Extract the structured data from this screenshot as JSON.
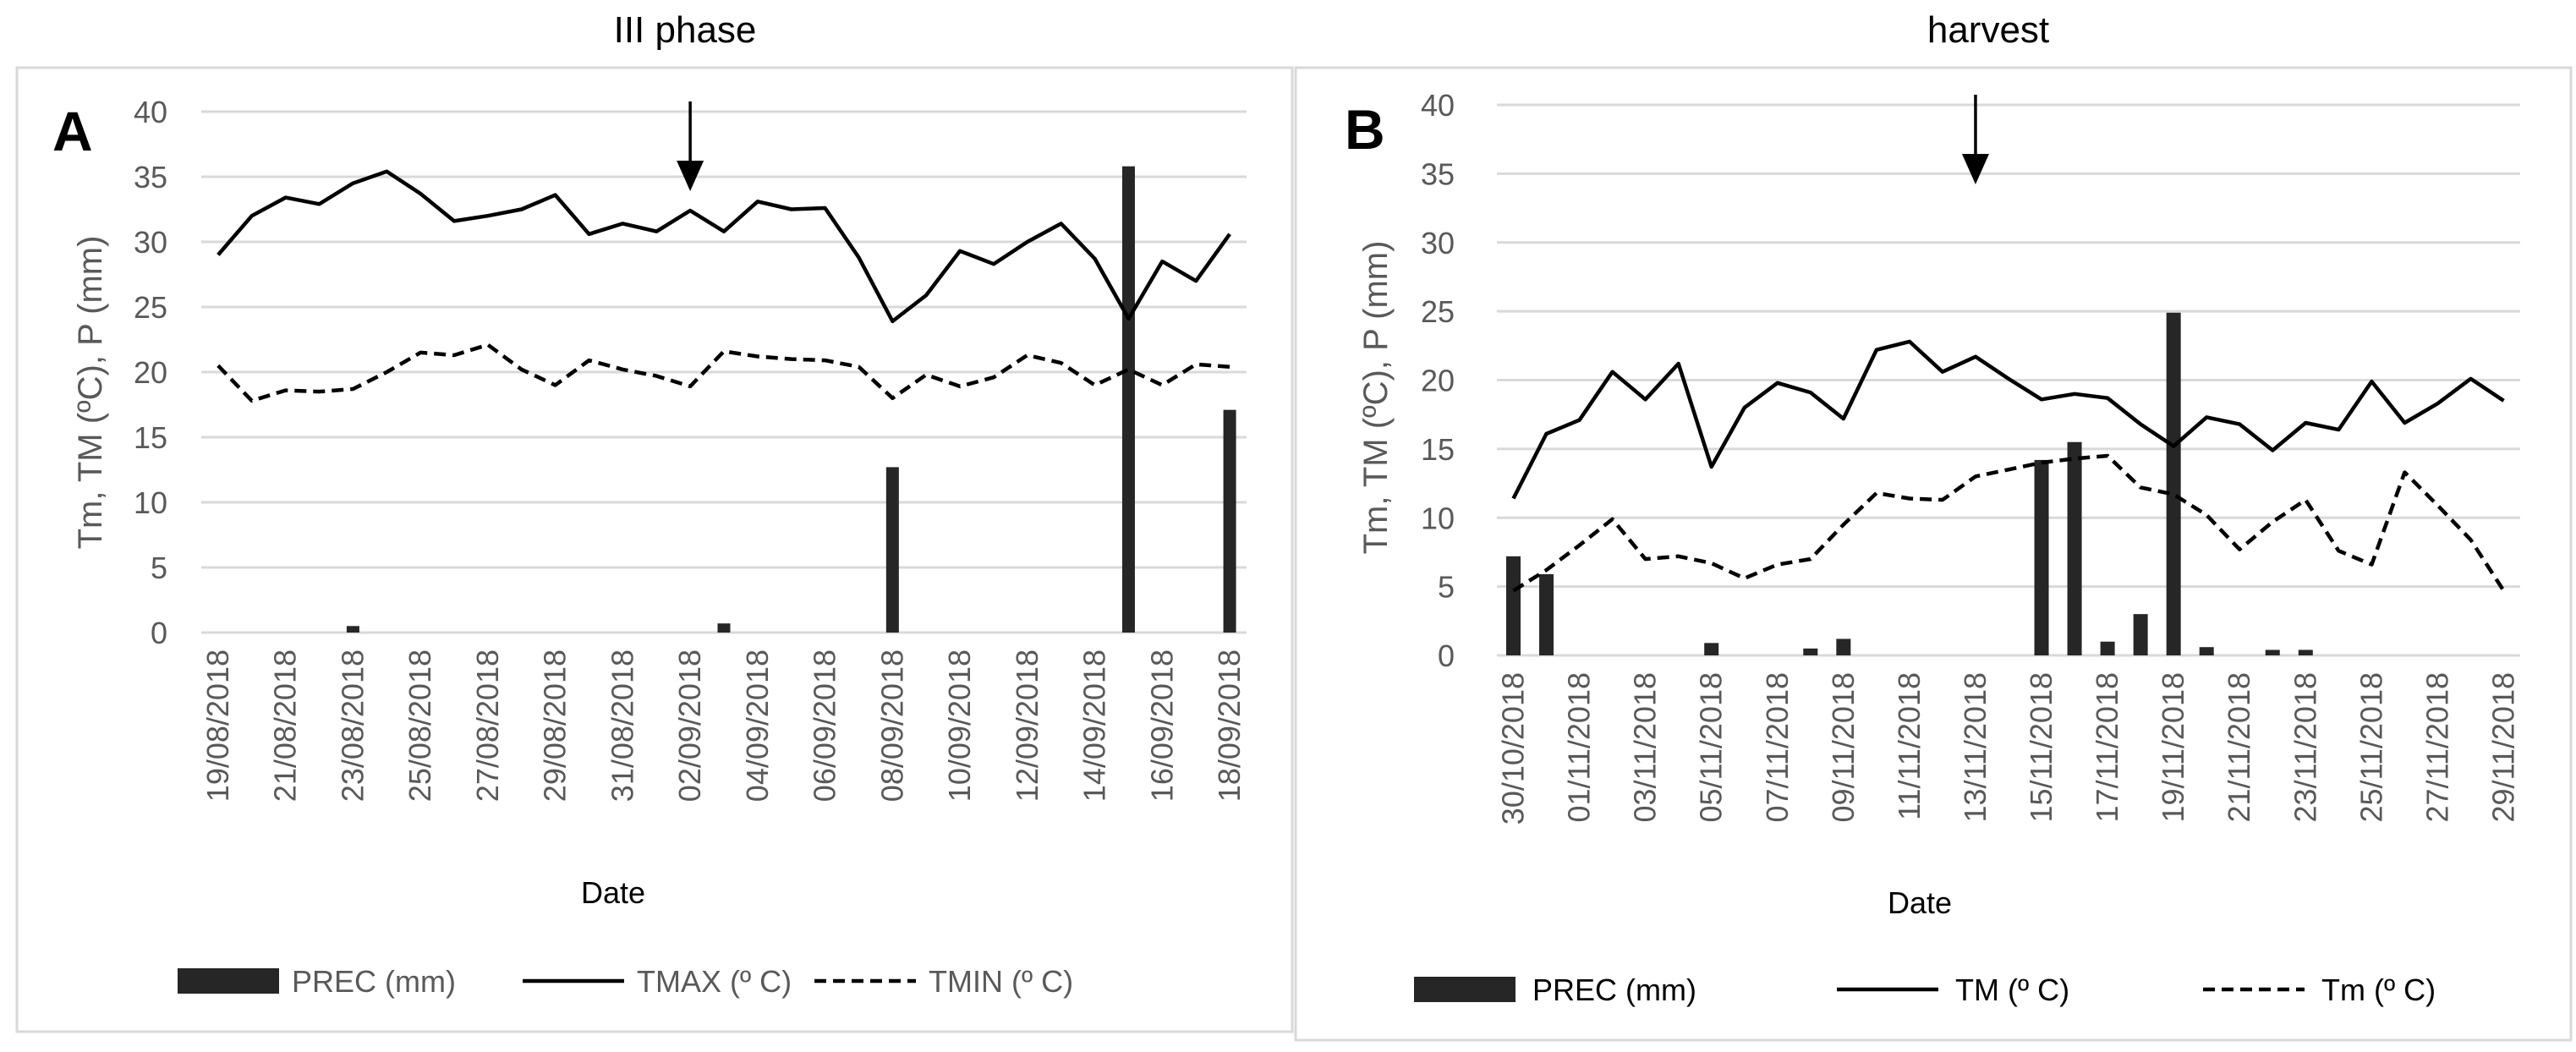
{
  "panels": [
    {
      "section_title": "III phase",
      "panel_letter": "A",
      "event_marker_date": "02/09/2018",
      "colors": {
        "axis_text": "#595959",
        "gridline": "#d9d9d9",
        "series": "#000000",
        "bar": "#262626"
      },
      "legend": [
        "PREC  (mm)",
        "TMAX  (º C)",
        "TMIN  (º C)"
      ]
    },
    {
      "section_title": "harvest",
      "panel_letter": "B",
      "event_marker_date": "13/11/2018",
      "colors": {
        "axis_text": "#595959",
        "gridline": "#d9d9d9",
        "series": "#000000",
        "bar": "#262626"
      },
      "legend": [
        "PREC  (mm)",
        "TM (º C)",
        "Tm (º C)"
      ]
    }
  ],
  "chart_data": [
    {
      "type": "line+bar",
      "title": "III phase",
      "ylabel": "Tm, TM (ºC), P (mm)",
      "xlabel": "Date",
      "ylim": [
        0,
        40
      ],
      "yticks": [
        0,
        5,
        10,
        15,
        20,
        25,
        30,
        35,
        40
      ],
      "grid": true,
      "legend_position": "bottom",
      "dates": [
        "19/08/2018",
        "20/08/2018",
        "21/08/2018",
        "22/08/2018",
        "23/08/2018",
        "24/08/2018",
        "25/08/2018",
        "26/08/2018",
        "27/08/2018",
        "28/08/2018",
        "29/08/2018",
        "30/08/2018",
        "31/08/2018",
        "01/09/2018",
        "02/09/2018",
        "03/09/2018",
        "04/09/2018",
        "05/09/2018",
        "06/09/2018",
        "07/09/2018",
        "08/09/2018",
        "09/09/2018",
        "10/09/2018",
        "11/09/2018",
        "12/09/2018",
        "13/09/2018",
        "14/09/2018",
        "15/09/2018",
        "16/09/2018",
        "17/09/2018",
        "18/09/2018"
      ],
      "tick_labels": [
        "19/08/2018",
        "21/08/2018",
        "23/08/2018",
        "25/08/2018",
        "27/08/2018",
        "29/08/2018",
        "31/08/2018",
        "02/09/2018",
        "04/09/2018",
        "06/09/2018",
        "08/09/2018",
        "10/09/2018",
        "12/09/2018",
        "14/09/2018",
        "16/09/2018",
        "18/09/2018"
      ],
      "series": [
        {
          "name": "PREC  (mm)",
          "kind": "bar",
          "values": [
            0,
            0,
            0,
            0,
            0.5,
            0,
            0,
            0,
            0,
            0,
            0,
            0,
            0,
            0,
            0,
            0.7,
            0,
            0,
            0,
            0,
            12.7,
            0,
            0,
            0,
            0,
            0,
            0,
            35.8,
            0,
            0,
            17.1
          ]
        },
        {
          "name": "TMAX  (º C)",
          "kind": "line",
          "style": "solid",
          "values": [
            29.0,
            32.0,
            33.4,
            32.9,
            34.5,
            35.4,
            33.7,
            31.6,
            32.0,
            32.5,
            33.6,
            30.6,
            31.4,
            30.8,
            32.4,
            30.8,
            33.1,
            32.5,
            32.6,
            28.8,
            23.9,
            25.9,
            29.3,
            28.3,
            30.0,
            31.4,
            28.7,
            24.1,
            28.5,
            27.0,
            30.6
          ]
        },
        {
          "name": "TMIN  (º C)",
          "kind": "line",
          "style": "dashed",
          "values": [
            20.5,
            17.8,
            18.6,
            18.5,
            18.7,
            20.0,
            21.5,
            21.3,
            22.1,
            20.2,
            19.0,
            20.9,
            20.2,
            19.7,
            18.9,
            21.6,
            21.2,
            21.0,
            20.9,
            20.4,
            18.0,
            19.8,
            18.9,
            19.6,
            21.3,
            20.7,
            19.0,
            20.2,
            19.0,
            20.6,
            20.4
          ]
        }
      ]
    },
    {
      "type": "line+bar",
      "title": "harvest",
      "ylabel": "Tm, TM (ºC), P (mm)",
      "xlabel": "Date",
      "ylim": [
        0,
        40
      ],
      "yticks": [
        0,
        5,
        10,
        15,
        20,
        25,
        30,
        35,
        40
      ],
      "grid": true,
      "legend_position": "bottom",
      "dates": [
        "30/10/2018",
        "31/10/2018",
        "01/11/2018",
        "02/11/2018",
        "03/11/2018",
        "04/11/2018",
        "05/11/2018",
        "06/11/2018",
        "07/11/2018",
        "08/11/2018",
        "09/11/2018",
        "10/11/2018",
        "11/11/2018",
        "12/11/2018",
        "13/11/2018",
        "14/11/2018",
        "15/11/2018",
        "16/11/2018",
        "17/11/2018",
        "18/11/2018",
        "19/11/2018",
        "20/11/2018",
        "21/11/2018",
        "22/11/2018",
        "23/11/2018",
        "24/11/2018",
        "25/11/2018",
        "26/11/2018",
        "27/11/2018",
        "28/11/2018",
        "29/11/2018"
      ],
      "tick_labels": [
        "30/10/2018",
        "01/11/2018",
        "03/11/2018",
        "05/11/2018",
        "07/11/2018",
        "09/11/2018",
        "11/11/2018",
        "13/11/2018",
        "15/11/2018",
        "17/11/2018",
        "19/11/2018",
        "21/11/2018",
        "23/11/2018",
        "25/11/2018",
        "27/11/2018",
        "29/11/2018"
      ],
      "series": [
        {
          "name": "PREC  (mm)",
          "kind": "bar",
          "values": [
            7.2,
            5.9,
            0,
            0,
            0,
            0,
            0.9,
            0,
            0,
            0.5,
            1.2,
            0,
            0,
            0,
            0,
            0,
            14.2,
            15.5,
            1.0,
            3.0,
            24.9,
            0.6,
            0,
            0.4,
            0.4,
            0,
            0,
            0,
            0,
            0,
            0
          ]
        },
        {
          "name": "TM (º C)",
          "kind": "line",
          "style": "solid",
          "values": [
            11.4,
            16.1,
            17.1,
            20.6,
            18.6,
            21.2,
            13.7,
            18.0,
            19.8,
            19.1,
            17.2,
            22.2,
            22.8,
            20.6,
            21.7,
            20.1,
            18.6,
            19.0,
            18.7,
            16.8,
            15.2,
            17.3,
            16.8,
            14.9,
            16.9,
            16.4,
            19.9,
            16.9,
            18.3,
            20.1,
            18.5
          ]
        },
        {
          "name": "Tm (º C)",
          "kind": "line",
          "style": "dashed",
          "values": [
            4.7,
            6.2,
            8.0,
            9.9,
            7.0,
            7.2,
            6.7,
            5.6,
            6.6,
            7.0,
            9.5,
            11.8,
            11.4,
            11.3,
            13.0,
            13.5,
            14.0,
            14.3,
            14.5,
            12.2,
            11.7,
            10.2,
            7.7,
            9.7,
            11.3,
            7.6,
            6.6,
            13.3,
            10.9,
            8.4,
            4.7
          ]
        }
      ]
    }
  ]
}
